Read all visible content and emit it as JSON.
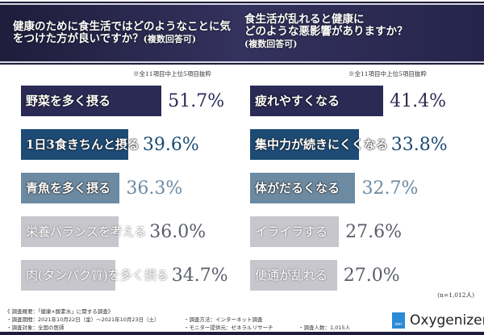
{
  "header": {
    "left_question": "健康のために食生活ではどのようなことに気をつけた方が良いですか？",
    "left_suffix": "(複数回答可)",
    "right_question_line1": "食生活が乱れると健康に",
    "right_question_line2": "どのような悪影響がありますか？",
    "right_suffix": "(複数回答可)"
  },
  "notes": {
    "left": "※全11項目中上位5項目抜粋",
    "right": "※全11項目中上位5項目抜粋",
    "sample": "(n=1,012人)"
  },
  "colors": {
    "rank1": "#2b2a55",
    "rank2": "#1d4b75",
    "rank3": "#6c8aa2",
    "rank4": "#c6c6cc",
    "rank5": "#c6c6cc",
    "header": "#2a2950"
  },
  "chart_data": [
    {
      "type": "bar",
      "orientation": "horizontal",
      "unit": "%",
      "categories": [
        "野菜を多く摂る",
        "1日3食きちんと摂る",
        "青魚を多く摂る",
        "栄養バランスを考える",
        "肉(タンパク質)を多く摂る"
      ],
      "values": [
        51.7,
        39.6,
        36.3,
        36.0,
        34.7
      ],
      "labels": [
        "51.7%",
        "39.6%",
        "36.3%",
        "36.0%",
        "34.7%"
      ]
    },
    {
      "type": "bar",
      "orientation": "horizontal",
      "unit": "%",
      "categories": [
        "疲れやすくなる",
        "集中力が続きにくくなる",
        "体がだるくなる",
        "イライラする",
        "便通が乱れる"
      ],
      "values": [
        41.4,
        33.8,
        32.7,
        27.6,
        27.0
      ],
      "labels": [
        "41.4%",
        "33.8%",
        "32.7%",
        "27.6%",
        "27.0%"
      ]
    }
  ],
  "footer": {
    "title": "《 調査概要：「健康×酸素水」に関する調査》",
    "period": "・調査期間：2021年10月22日（金）～2021年10月23日（土）",
    "target": "・調査対象：全国の医師",
    "method": "・調査方法：インターネット調査",
    "provider": "・モニター提供元：ゼネラルリサーチ",
    "count": "・調査人数：1,015人"
  },
  "logos": {
    "mark": "izer",
    "brand": "Oxygenizer"
  }
}
